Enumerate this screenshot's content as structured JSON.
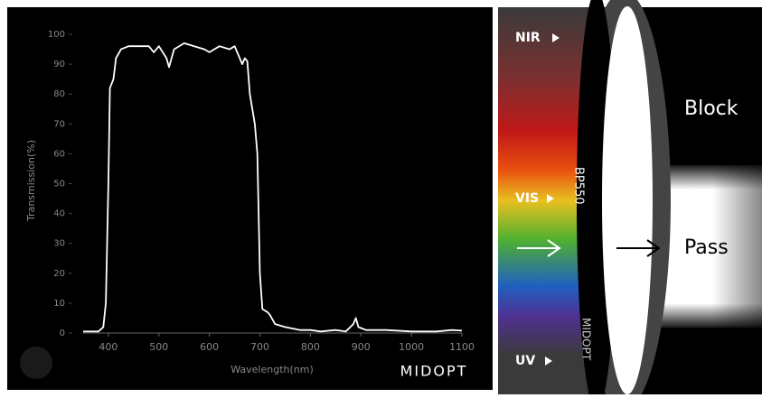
{
  "chart_data": {
    "type": "line",
    "x_label": "Wavelength(nm)",
    "y_label": "Transmission(%)",
    "x": [
      350,
      380,
      390,
      395,
      400,
      403,
      410,
      415,
      425,
      440,
      460,
      480,
      490,
      500,
      515,
      520,
      530,
      550,
      570,
      590,
      600,
      620,
      640,
      650,
      660,
      665,
      670,
      675,
      680,
      690,
      695,
      700,
      705,
      715,
      720,
      730,
      750,
      780,
      800,
      820,
      850,
      870,
      885,
      890,
      895,
      910,
      950,
      1000,
      1050,
      1080,
      1100
    ],
    "series": [
      {
        "color": "#ffffff",
        "values": [
          0.5,
          0.5,
          2,
          10,
          50,
          82,
          85,
          92,
          95,
          96,
          96,
          96,
          94,
          96,
          92,
          89,
          95,
          97,
          96,
          95,
          94,
          96,
          95,
          96,
          92,
          90,
          92,
          91,
          80,
          70,
          60,
          20,
          8,
          7,
          6,
          3,
          2,
          1,
          1,
          0.5,
          1,
          0.5,
          3,
          5,
          2,
          1,
          1,
          0.5,
          0.5,
          1,
          0.8
        ]
      }
    ],
    "xlim": [
      350,
      1100
    ],
    "xticks": [
      400,
      500,
      600,
      700,
      800,
      900,
      1000,
      1100
    ],
    "ylim": [
      0,
      100
    ],
    "yticks": [
      0,
      10,
      20,
      30,
      40,
      50,
      60,
      70,
      80,
      90,
      100
    ],
    "grid": false
  },
  "logo": "MIDOPT",
  "diagram": {
    "nir": "NIR",
    "vis": "VIS",
    "uv": "UV",
    "block": "Block",
    "pass": "Pass",
    "filter": "BP550",
    "brand": "MIDOPT"
  }
}
